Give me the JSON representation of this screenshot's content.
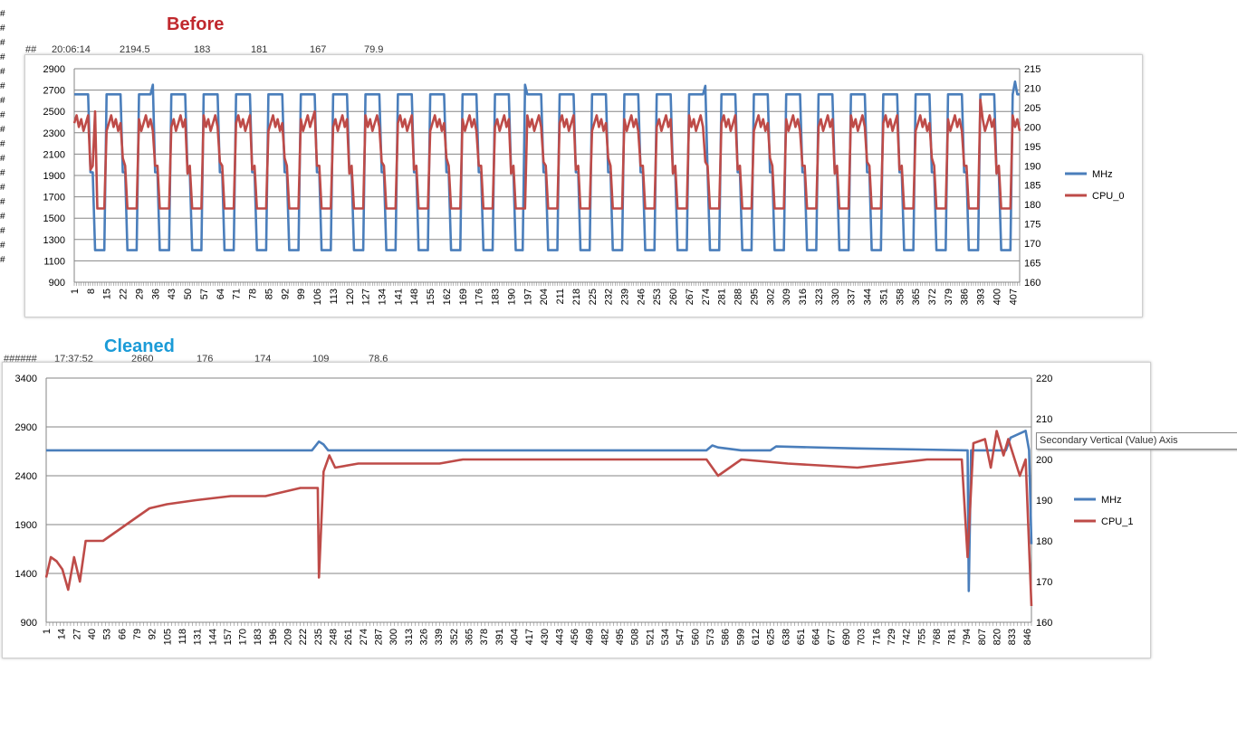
{
  "headings": {
    "before": "Before",
    "cleaned": "Cleaned"
  },
  "before_row": {
    "marker": "##",
    "time": "20:06:14",
    "v1": "2194.5",
    "v2": "183",
    "v3": "181",
    "v4": "167",
    "v5": "79.9"
  },
  "cleaned_row": {
    "marker": "######",
    "time": "17:37:52",
    "v1": "2660",
    "v2": "176",
    "v3": "174",
    "v4": "109",
    "v5": "78.6"
  },
  "row_markers": [
    "#",
    "#",
    "#",
    "#",
    "#",
    "#",
    "#",
    "#",
    "#",
    "#",
    "#",
    "#",
    "#",
    "#",
    "#",
    "#",
    "#",
    "#"
  ],
  "tooltip": "Secondary Vertical (Value) Axis",
  "colors": {
    "mhz": "#4a7ebb",
    "cpu": "#be4b48",
    "grid": "#868686",
    "axis": "#868686"
  },
  "chart_data": [
    {
      "type": "line",
      "title": "",
      "x_range": [
        1,
        410
      ],
      "x_tick_labels": [
        1,
        8,
        15,
        22,
        29,
        36,
        43,
        50,
        57,
        64,
        71,
        78,
        85,
        92,
        99,
        106,
        113,
        120,
        127,
        134,
        141,
        148,
        155,
        162,
        169,
        176,
        183,
        190,
        197,
        204,
        211,
        218,
        225,
        232,
        239,
        246,
        253,
        260,
        267,
        274,
        281,
        288,
        295,
        302,
        309,
        316,
        323,
        330,
        337,
        344,
        351,
        358,
        365,
        372,
        379,
        386,
        393,
        400,
        407
      ],
      "y_left": {
        "range": [
          900,
          2900
        ],
        "ticks": [
          900,
          1100,
          1300,
          1500,
          1700,
          1900,
          2100,
          2300,
          2500,
          2700,
          2900
        ]
      },
      "y_right": {
        "range": [
          160,
          215
        ],
        "ticks": [
          160,
          165,
          170,
          175,
          180,
          185,
          190,
          195,
          200,
          205,
          210,
          215
        ]
      },
      "grid": true,
      "legend": "right",
      "series": [
        {
          "name": "MHz",
          "axis": "left",
          "pattern": "square_wave",
          "high": 2660,
          "low": 1200,
          "period": 14,
          "duty": 0.55,
          "spikes": [
            [
              35,
              2750
            ],
            [
              196,
              2750
            ],
            [
              274,
              2740
            ],
            [
              408,
              2780
            ]
          ]
        },
        {
          "name": "CPU_0",
          "axis": "right",
          "pattern": "square_wave",
          "high": 201,
          "low": 179,
          "period": 14,
          "duty": 0.55,
          "spikes": [
            [
              10,
              204
            ],
            [
              105,
              204
            ],
            [
              393,
              207
            ]
          ]
        }
      ]
    },
    {
      "type": "line",
      "title": "",
      "x_range": [
        1,
        850
      ],
      "x_tick_labels": [
        1,
        14,
        27,
        40,
        53,
        66,
        79,
        92,
        105,
        118,
        131,
        144,
        157,
        170,
        183,
        196,
        209,
        222,
        235,
        248,
        261,
        274,
        287,
        300,
        313,
        326,
        339,
        352,
        365,
        378,
        391,
        404,
        417,
        430,
        443,
        456,
        469,
        482,
        495,
        508,
        521,
        534,
        547,
        560,
        573,
        586,
        599,
        612,
        625,
        638,
        651,
        664,
        677,
        690,
        703,
        716,
        729,
        742,
        755,
        768,
        781,
        794,
        807,
        820,
        833,
        846
      ],
      "y_left": {
        "range": [
          900,
          3400
        ],
        "ticks": [
          900,
          1400,
          1900,
          2400,
          2900,
          3400
        ]
      },
      "y_right": {
        "range": [
          160,
          220
        ],
        "ticks": [
          160,
          170,
          180,
          190,
          200,
          210,
          220
        ]
      },
      "grid": true,
      "legend": "right",
      "series": [
        {
          "name": "MHz",
          "axis": "left",
          "points": [
            [
              1,
              2660
            ],
            [
              230,
              2660
            ],
            [
              236,
              2750
            ],
            [
              240,
              2720
            ],
            [
              244,
              2660
            ],
            [
              570,
              2660
            ],
            [
              575,
              2710
            ],
            [
              580,
              2690
            ],
            [
              600,
              2660
            ],
            [
              625,
              2660
            ],
            [
              630,
              2700
            ],
            [
              700,
              2680
            ],
            [
              795,
              2660
            ],
            [
              796,
              1220
            ],
            [
              798,
              2660
            ],
            [
              828,
              2660
            ],
            [
              832,
              2790
            ],
            [
              845,
              2860
            ],
            [
              848,
              2660
            ],
            [
              850,
              1700
            ]
          ]
        },
        {
          "name": "CPU_1",
          "axis": "right",
          "points": [
            [
              1,
              171
            ],
            [
              5,
              176
            ],
            [
              10,
              175
            ],
            [
              15,
              173
            ],
            [
              20,
              168
            ],
            [
              25,
              176
            ],
            [
              30,
              170
            ],
            [
              35,
              180
            ],
            [
              50,
              180
            ],
            [
              60,
              182
            ],
            [
              70,
              184
            ],
            [
              80,
              186
            ],
            [
              90,
              188
            ],
            [
              105,
              189
            ],
            [
              130,
              190
            ],
            [
              160,
              191
            ],
            [
              190,
              191
            ],
            [
              220,
              193
            ],
            [
              235,
              193
            ],
            [
              236,
              171
            ],
            [
              240,
              197
            ],
            [
              245,
              201
            ],
            [
              250,
              198
            ],
            [
              270,
              199
            ],
            [
              300,
              199
            ],
            [
              340,
              199
            ],
            [
              360,
              200
            ],
            [
              400,
              200
            ],
            [
              440,
              200
            ],
            [
              480,
              200
            ],
            [
              520,
              200
            ],
            [
              550,
              200
            ],
            [
              570,
              200
            ],
            [
              580,
              196
            ],
            [
              600,
              200
            ],
            [
              640,
              199
            ],
            [
              700,
              198
            ],
            [
              760,
              200
            ],
            [
              790,
              200
            ],
            [
              795,
              176
            ],
            [
              800,
              204
            ],
            [
              810,
              205
            ],
            [
              815,
              198
            ],
            [
              820,
              207
            ],
            [
              826,
              201
            ],
            [
              830,
              205
            ],
            [
              840,
              196
            ],
            [
              845,
              200
            ],
            [
              850,
              164
            ]
          ]
        }
      ]
    }
  ]
}
